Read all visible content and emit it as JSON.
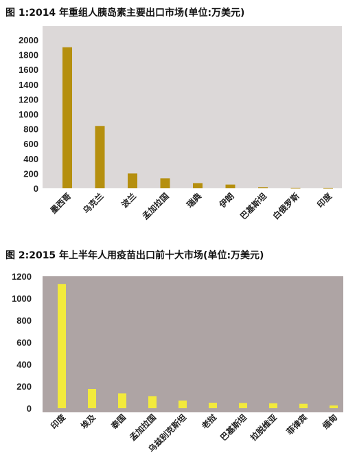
{
  "charts": {
    "chart1": {
      "title": "图 1:2014 年重组人胰岛素主要出口市场(单位:万美元)"
    },
    "chart2": {
      "title": "图 2:2015 年上半年人用疫苗出口前十大市场(单位:万美元)"
    }
  },
  "chart_data": [
    {
      "type": "bar",
      "title": "图 1:2014 年重组人胰岛素主要出口市场(单位:万美元)",
      "categories": [
        "墨西哥",
        "乌克兰",
        "波兰",
        "孟加拉国",
        "瑞典",
        "伊朗",
        "巴基斯坦",
        "白俄罗斯",
        "印度"
      ],
      "values": [
        1900,
        840,
        200,
        135,
        70,
        50,
        15,
        3,
        2
      ],
      "yticks": [
        0,
        200,
        400,
        600,
        800,
        1000,
        1200,
        1400,
        1600,
        1800,
        2000
      ],
      "ylim": [
        0,
        2000
      ],
      "bar_color": "#b58f0e",
      "plot_bg": "#dcd8d8",
      "grid": false,
      "legend": "none"
    },
    {
      "type": "bar",
      "title": "图 2:2015 年上半年人用疫苗出口前十大市场(单位:万美元)",
      "categories": [
        "印度",
        "埃及",
        "泰国",
        "孟加拉国",
        "乌兹别克斯坦",
        "老挝",
        "巴基斯坦",
        "拉脱维亚",
        "菲律宾",
        "缅甸"
      ],
      "values": [
        1130,
        175,
        135,
        110,
        70,
        50,
        48,
        45,
        40,
        25
      ],
      "yticks": [
        0,
        200,
        400,
        600,
        800,
        1000,
        1200
      ],
      "ylim": [
        0,
        1200
      ],
      "bar_color": "#f2ea3c",
      "plot_bg": "#aea4a4",
      "grid": false,
      "legend": "none"
    }
  ]
}
